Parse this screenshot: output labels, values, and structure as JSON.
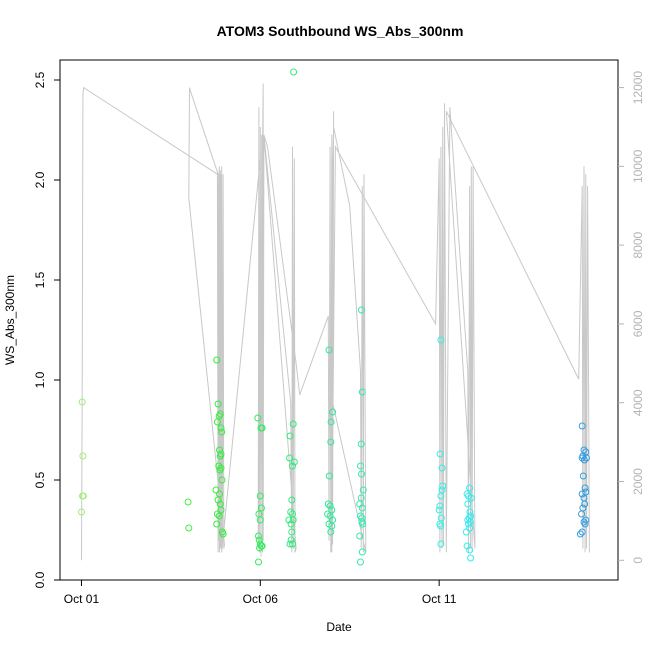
{
  "chart_data": {
    "type": "scatter",
    "title": "ATOM3 Southbound WS_Abs_300nm",
    "xlabel": "Date",
    "ylabel": "WS_Abs_300nm",
    "xlim": [
      -0.6,
      15.0
    ],
    "ylim": [
      0,
      2.6
    ],
    "xticks": [
      {
        "value": 0,
        "label": "Oct 01"
      },
      {
        "value": 5,
        "label": "Oct 06"
      },
      {
        "value": 10,
        "label": "Oct 11"
      }
    ],
    "yticks": [
      {
        "value": 0,
        "label": "0.0"
      },
      {
        "value": 0.5,
        "label": "0.5"
      },
      {
        "value": 1.0,
        "label": "1.0"
      },
      {
        "value": 1.5,
        "label": "1.5"
      },
      {
        "value": 2.0,
        "label": "2.0"
      },
      {
        "value": 2.5,
        "label": "2.5"
      }
    ],
    "y2lim": [
      -500,
      12700
    ],
    "y2ticks": [
      {
        "value": 0,
        "label": "0"
      },
      {
        "value": 2000,
        "label": "2000"
      },
      {
        "value": 4000,
        "label": "4000"
      },
      {
        "value": 6000,
        "label": "6000"
      },
      {
        "value": 8000,
        "label": "8000"
      },
      {
        "value": 10000,
        "label": "10000"
      },
      {
        "value": 12000,
        "label": "12000"
      }
    ],
    "grid": false,
    "colors": {
      "altitude_line": "#c8c8c8",
      "right_axis": "#b3b3b3",
      "marker_gradient": [
        "#a0f070",
        "#33f033",
        "#33e8a0",
        "#33f0f0",
        "#3399dd"
      ]
    },
    "points": [
      {
        "x": 0.02,
        "y": 0.89
      },
      {
        "x": 0.03,
        "y": 0.42
      },
      {
        "x": 0.05,
        "y": 0.42
      },
      {
        "x": 0.0,
        "y": 0.34
      },
      {
        "x": 0.04,
        "y": 0.62
      },
      {
        "x": 2.98,
        "y": 0.39
      },
      {
        "x": 3.0,
        "y": 0.26
      },
      {
        "x": 3.78,
        "y": 1.1
      },
      {
        "x": 3.82,
        "y": 0.88
      },
      {
        "x": 3.85,
        "y": 0.82
      },
      {
        "x": 3.88,
        "y": 0.83
      },
      {
        "x": 3.9,
        "y": 0.76
      },
      {
        "x": 3.8,
        "y": 0.79
      },
      {
        "x": 3.86,
        "y": 0.65
      },
      {
        "x": 3.88,
        "y": 0.62
      },
      {
        "x": 3.9,
        "y": 0.63
      },
      {
        "x": 3.92,
        "y": 0.74
      },
      {
        "x": 3.84,
        "y": 0.57
      },
      {
        "x": 3.87,
        "y": 0.55
      },
      {
        "x": 3.9,
        "y": 0.56
      },
      {
        "x": 3.93,
        "y": 0.5
      },
      {
        "x": 3.76,
        "y": 0.45
      },
      {
        "x": 3.82,
        "y": 0.4
      },
      {
        "x": 3.86,
        "y": 0.43
      },
      {
        "x": 3.88,
        "y": 0.38
      },
      {
        "x": 3.8,
        "y": 0.33
      },
      {
        "x": 3.85,
        "y": 0.32
      },
      {
        "x": 3.9,
        "y": 0.35
      },
      {
        "x": 3.78,
        "y": 0.28
      },
      {
        "x": 3.94,
        "y": 0.24
      },
      {
        "x": 3.96,
        "y": 0.23
      },
      {
        "x": 4.93,
        "y": 0.81
      },
      {
        "x": 5.02,
        "y": 0.76
      },
      {
        "x": 5.05,
        "y": 0.76
      },
      {
        "x": 5.0,
        "y": 0.42
      },
      {
        "x": 5.03,
        "y": 0.36
      },
      {
        "x": 4.96,
        "y": 0.33
      },
      {
        "x": 5.0,
        "y": 0.3
      },
      {
        "x": 4.95,
        "y": 0.22
      },
      {
        "x": 4.97,
        "y": 0.2
      },
      {
        "x": 5.0,
        "y": 0.18
      },
      {
        "x": 5.03,
        "y": 0.17
      },
      {
        "x": 4.98,
        "y": 0.16
      },
      {
        "x": 4.95,
        "y": 0.09
      },
      {
        "x": 5.05,
        "y": 0.17
      },
      {
        "x": 5.83,
        "y": 0.72
      },
      {
        "x": 5.92,
        "y": 0.78
      },
      {
        "x": 5.82,
        "y": 0.61
      },
      {
        "x": 5.9,
        "y": 0.57
      },
      {
        "x": 5.95,
        "y": 0.59
      },
      {
        "x": 5.88,
        "y": 0.4
      },
      {
        "x": 5.85,
        "y": 0.34
      },
      {
        "x": 5.9,
        "y": 0.33
      },
      {
        "x": 5.8,
        "y": 0.3
      },
      {
        "x": 5.92,
        "y": 0.3
      },
      {
        "x": 5.86,
        "y": 0.28
      },
      {
        "x": 5.88,
        "y": 0.24
      },
      {
        "x": 5.83,
        "y": 0.18
      },
      {
        "x": 5.9,
        "y": 0.18
      },
      {
        "x": 5.86,
        "y": 0.2
      },
      {
        "x": 5.93,
        "y": 2.54
      },
      {
        "x": 6.92,
        "y": 1.15
      },
      {
        "x": 7.02,
        "y": 0.84
      },
      {
        "x": 6.98,
        "y": 0.79
      },
      {
        "x": 6.97,
        "y": 0.69
      },
      {
        "x": 6.93,
        "y": 0.52
      },
      {
        "x": 6.9,
        "y": 0.38
      },
      {
        "x": 6.95,
        "y": 0.37
      },
      {
        "x": 7.0,
        "y": 0.35
      },
      {
        "x": 6.88,
        "y": 0.33
      },
      {
        "x": 6.95,
        "y": 0.32
      },
      {
        "x": 7.02,
        "y": 0.3
      },
      {
        "x": 6.92,
        "y": 0.28
      },
      {
        "x": 7.0,
        "y": 0.27
      },
      {
        "x": 6.97,
        "y": 0.24
      },
      {
        "x": 7.83,
        "y": 1.35
      },
      {
        "x": 7.85,
        "y": 0.94
      },
      {
        "x": 7.82,
        "y": 0.68
      },
      {
        "x": 7.8,
        "y": 0.57
      },
      {
        "x": 7.83,
        "y": 0.53
      },
      {
        "x": 7.88,
        "y": 0.45
      },
      {
        "x": 7.82,
        "y": 0.41
      },
      {
        "x": 7.78,
        "y": 0.38
      },
      {
        "x": 7.85,
        "y": 0.36
      },
      {
        "x": 7.8,
        "y": 0.32
      },
      {
        "x": 7.84,
        "y": 0.31
      },
      {
        "x": 7.86,
        "y": 0.28
      },
      {
        "x": 7.84,
        "y": 0.29
      },
      {
        "x": 7.78,
        "y": 0.22
      },
      {
        "x": 7.85,
        "y": 0.14
      },
      {
        "x": 7.8,
        "y": 0.09
      },
      {
        "x": 10.05,
        "y": 1.2
      },
      {
        "x": 10.03,
        "y": 0.63
      },
      {
        "x": 10.08,
        "y": 0.56
      },
      {
        "x": 10.1,
        "y": 0.47
      },
      {
        "x": 10.08,
        "y": 0.45
      },
      {
        "x": 10.05,
        "y": 0.42
      },
      {
        "x": 10.02,
        "y": 0.37
      },
      {
        "x": 10.0,
        "y": 0.35
      },
      {
        "x": 10.06,
        "y": 0.31
      },
      {
        "x": 10.02,
        "y": 0.28
      },
      {
        "x": 10.04,
        "y": 0.27
      },
      {
        "x": 10.05,
        "y": 0.18
      },
      {
        "x": 10.78,
        "y": 0.43
      },
      {
        "x": 10.85,
        "y": 0.46
      },
      {
        "x": 10.9,
        "y": 0.41
      },
      {
        "x": 10.82,
        "y": 0.42
      },
      {
        "x": 10.8,
        "y": 0.38
      },
      {
        "x": 10.86,
        "y": 0.34
      },
      {
        "x": 10.88,
        "y": 0.32
      },
      {
        "x": 10.84,
        "y": 0.31
      },
      {
        "x": 10.8,
        "y": 0.3
      },
      {
        "x": 10.87,
        "y": 0.29
      },
      {
        "x": 10.82,
        "y": 0.28
      },
      {
        "x": 10.85,
        "y": 0.26
      },
      {
        "x": 10.76,
        "y": 0.24
      },
      {
        "x": 10.78,
        "y": 0.17
      },
      {
        "x": 10.85,
        "y": 0.15
      },
      {
        "x": 10.88,
        "y": 0.11
      },
      {
        "x": 14.0,
        "y": 0.77
      },
      {
        "x": 14.05,
        "y": 0.65
      },
      {
        "x": 14.1,
        "y": 0.64
      },
      {
        "x": 14.02,
        "y": 0.62
      },
      {
        "x": 14.0,
        "y": 0.61
      },
      {
        "x": 14.06,
        "y": 0.6
      },
      {
        "x": 14.12,
        "y": 0.61
      },
      {
        "x": 14.03,
        "y": 0.52
      },
      {
        "x": 14.08,
        "y": 0.46
      },
      {
        "x": 14.0,
        "y": 0.43
      },
      {
        "x": 14.1,
        "y": 0.44
      },
      {
        "x": 14.05,
        "y": 0.41
      },
      {
        "x": 14.02,
        "y": 0.36
      },
      {
        "x": 14.07,
        "y": 0.38
      },
      {
        "x": 13.98,
        "y": 0.33
      },
      {
        "x": 14.1,
        "y": 0.3
      },
      {
        "x": 14.08,
        "y": 0.28
      },
      {
        "x": 14.05,
        "y": 0.29
      },
      {
        "x": 13.95,
        "y": 0.23
      },
      {
        "x": 14.0,
        "y": 0.24
      }
    ],
    "altitude_series": {
      "name": "",
      "x": [
        0.0,
        0.02,
        0.04,
        0.06,
        3.8,
        3.82,
        3.85,
        3.86,
        3.88,
        3.9,
        3.92,
        3.94,
        3.96,
        3.98,
        4.0,
        3.0,
        3.02,
        3.05,
        3.82,
        3.84,
        3.86,
        3.88,
        3.9,
        3.92,
        5.0,
        5.02,
        5.04,
        5.06,
        5.08,
        4.94,
        4.96,
        4.98,
        5.0,
        5.02,
        5.05,
        5.08,
        5.1,
        5.85,
        5.88,
        5.9,
        5.92,
        5.95,
        5.97,
        6.0,
        5.1,
        5.2,
        6.0,
        6.1,
        6.9,
        6.92,
        6.95,
        6.97,
        7.0,
        7.02,
        7.05,
        7.0,
        7.02,
        7.05,
        7.5,
        7.8,
        7.82,
        7.85,
        7.88,
        7.9,
        7.95,
        6.9,
        6.95,
        7.0,
        7.1,
        9.9,
        10.0,
        10.02,
        10.05,
        10.08,
        10.1,
        10.12,
        10.15,
        10.2,
        10.3,
        10.8,
        10.82,
        10.85,
        10.88,
        10.9,
        10.92,
        10.95,
        11.0,
        10.2,
        13.9,
        14.0,
        14.02,
        14.05,
        14.08,
        14.1,
        14.12,
        14.15,
        14.2
      ],
      "y": [
        0,
        4200,
        11800,
        12000,
        9800,
        200,
        10000,
        200,
        9900,
        300,
        10000,
        500,
        9800,
        300,
        400,
        9200,
        12000,
        11900,
        9800,
        500,
        9700,
        300,
        9800,
        200,
        10200,
        100,
        10800,
        200,
        12100,
        300,
        11500,
        200,
        11000,
        400,
        10500,
        500,
        10800,
        4000,
        200,
        10500,
        300,
        10200,
        200,
        300,
        10800,
        10500,
        5000,
        4200,
        6200,
        500,
        10500,
        200,
        10800,
        400,
        11400,
        200,
        9800,
        11000,
        9000,
        4800,
        300,
        9500,
        200,
        9800,
        200,
        4500,
        4000,
        500,
        10500,
        6000,
        10200,
        200,
        10500,
        300,
        11000,
        400,
        11600,
        200,
        11500,
        4800,
        200,
        9500,
        300,
        10000,
        200,
        10000,
        300,
        11400,
        4600,
        9500,
        300,
        10000,
        200,
        9800,
        300,
        9500,
        200
      ]
    }
  }
}
